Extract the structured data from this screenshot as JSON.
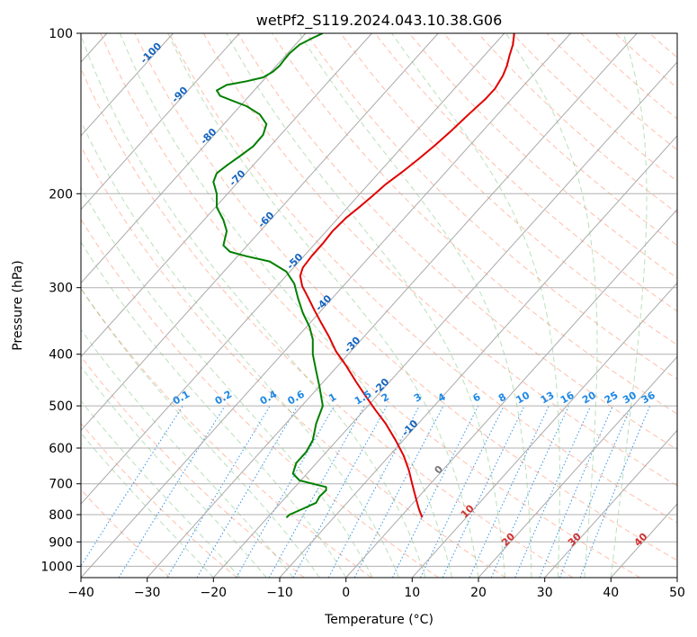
{
  "chart_data": {
    "type": "line",
    "title": "wetPf2_S119.2024.043.10.38.G06",
    "xlabel": "Temperature (°C)",
    "ylabel": "Pressure (hPa)",
    "xlim": [
      -40,
      50
    ],
    "ylim": [
      1050,
      100
    ],
    "y_scale": "log",
    "grid": true,
    "x_ticks": [
      -40,
      -30,
      -20,
      -10,
      0,
      10,
      20,
      30,
      40,
      50
    ],
    "y_ticks": [
      100,
      200,
      300,
      400,
      500,
      600,
      700,
      800,
      900,
      1000
    ],
    "series": [
      {
        "color": "#e00000",
        "points": [
          [
            11.5,
            810
          ],
          [
            11.0,
            780
          ],
          [
            10.5,
            740
          ],
          [
            10.0,
            700
          ],
          [
            9.5,
            660
          ],
          [
            8.7,
            620
          ],
          [
            7.5,
            580
          ],
          [
            6.0,
            540
          ],
          [
            4.5,
            510
          ],
          [
            3.0,
            480
          ],
          [
            1.5,
            450
          ],
          [
            0.0,
            420
          ],
          [
            -1.5,
            395
          ],
          [
            -2.6,
            370
          ],
          [
            -3.7,
            350
          ],
          [
            -4.8,
            330
          ],
          [
            -5.6,
            315
          ],
          [
            -6.6,
            298
          ],
          [
            -6.9,
            285
          ],
          [
            -6.5,
            275
          ],
          [
            -5.2,
            262
          ],
          [
            -3.5,
            248
          ],
          [
            -2.0,
            235
          ],
          [
            0.0,
            222
          ],
          [
            2.0,
            212
          ],
          [
            4.0,
            202
          ],
          [
            6.0,
            192
          ],
          [
            8.5,
            182
          ],
          [
            11.0,
            172
          ],
          [
            13.5,
            162
          ],
          [
            16.0,
            152
          ],
          [
            18.5,
            142
          ],
          [
            21.0,
            133
          ],
          [
            22.5,
            127
          ],
          [
            23.7,
            120
          ],
          [
            24.3,
            115
          ],
          [
            24.7,
            110
          ],
          [
            25.2,
            105
          ],
          [
            25.4,
            100
          ]
        ]
      },
      {
        "color": "#008000",
        "points": [
          [
            -9.0,
            810
          ],
          [
            -8.5,
            800
          ],
          [
            -6.5,
            780
          ],
          [
            -4.5,
            760
          ],
          [
            -4.0,
            740
          ],
          [
            -3.0,
            720
          ],
          [
            -3.0,
            710
          ],
          [
            -5.0,
            700
          ],
          [
            -7.0,
            690
          ],
          [
            -8.0,
            670
          ],
          [
            -7.5,
            640
          ],
          [
            -6.0,
            610
          ],
          [
            -5.0,
            580
          ],
          [
            -4.5,
            540
          ],
          [
            -3.5,
            500
          ],
          [
            -4.0,
            460
          ],
          [
            -4.5,
            430
          ],
          [
            -5.0,
            400
          ],
          [
            -5.0,
            375
          ],
          [
            -5.5,
            355
          ],
          [
            -6.5,
            335
          ],
          [
            -7.2,
            315
          ],
          [
            -7.8,
            295
          ],
          [
            -9.0,
            280
          ],
          [
            -11.5,
            268
          ],
          [
            -15.0,
            262
          ],
          [
            -17.5,
            257
          ],
          [
            -18.5,
            250
          ],
          [
            -18.0,
            235
          ],
          [
            -18.5,
            224
          ],
          [
            -19.5,
            212
          ],
          [
            -19.5,
            200
          ],
          [
            -20.0,
            190
          ],
          [
            -19.5,
            183
          ],
          [
            -18.0,
            177
          ],
          [
            -16.0,
            170
          ],
          [
            -14.0,
            163
          ],
          [
            -12.5,
            155
          ],
          [
            -12.0,
            148
          ],
          [
            -13.0,
            142
          ],
          [
            -15.0,
            137
          ],
          [
            -17.0,
            134
          ],
          [
            -19.0,
            131
          ],
          [
            -19.5,
            128
          ],
          [
            -18.0,
            125
          ],
          [
            -15.0,
            123
          ],
          [
            -12.5,
            121
          ],
          [
            -11.0,
            118
          ],
          [
            -10.0,
            115
          ],
          [
            -9.3,
            112
          ],
          [
            -8.5,
            109
          ],
          [
            -7.0,
            105
          ],
          [
            -5.0,
            102
          ],
          [
            -3.5,
            100
          ]
        ]
      }
    ],
    "isotherm_labels": [
      {
        "text": "-100",
        "value": -100
      },
      {
        "text": "-90",
        "value": -90
      },
      {
        "text": "-80",
        "value": -80
      },
      {
        "text": "-70",
        "value": -70
      },
      {
        "text": "-60",
        "value": -60
      },
      {
        "text": "-50",
        "value": -50
      },
      {
        "text": "-40",
        "value": -40
      },
      {
        "text": "-30",
        "value": -30
      },
      {
        "text": "-20",
        "value": -20
      },
      {
        "text": "-10",
        "value": -10
      },
      {
        "text": "0",
        "value": 0
      },
      {
        "text": "10",
        "value": 10
      },
      {
        "text": "20",
        "value": 20
      },
      {
        "text": "30",
        "value": 30
      },
      {
        "text": "40",
        "value": 40
      }
    ],
    "mixing_ratio_labels": [
      "0.1",
      "0.2",
      "0.4",
      "0.6",
      "1",
      "1.5",
      "2",
      "3",
      "4",
      "6",
      "8",
      "10",
      "13",
      "16",
      "20",
      "25",
      "30",
      "36"
    ],
    "colors": {
      "temperature": "#e00000",
      "dewpoint": "#008000",
      "dry_adiabat": "#ff8a65",
      "moist_adiabat": "#66bb6a",
      "mixing_ratio": "#1e88e5",
      "isotherm": "#888888",
      "isotherm_label_cold": "#1565c0",
      "isotherm_label_zero": "#757575",
      "isotherm_label_warm": "#d32f2f"
    }
  }
}
